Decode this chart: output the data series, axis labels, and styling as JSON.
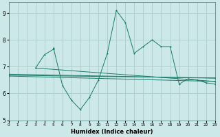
{
  "bg_color": "#cce8e8",
  "grid_color": "#b0d0d0",
  "line_color": "#1a7a6a",
  "xlabel": "Humidex (Indice chaleur)",
  "xlim": [
    0,
    23
  ],
  "ylim": [
    5,
    9.4
  ],
  "yticks": [
    5,
    6,
    7,
    8,
    9
  ],
  "xticks": [
    0,
    1,
    2,
    3,
    4,
    5,
    6,
    7,
    8,
    9,
    10,
    11,
    12,
    13,
    14,
    15,
    16,
    17,
    18,
    19,
    20,
    21,
    22,
    23
  ],
  "series1_x": [
    3,
    4,
    5,
    5,
    6,
    7,
    8,
    9,
    10,
    11,
    12,
    13,
    14,
    15,
    16,
    17,
    18,
    19,
    20,
    21,
    22,
    23
  ],
  "series1_y": [
    6.95,
    7.45,
    7.65,
    7.7,
    6.3,
    5.75,
    5.4,
    5.85,
    6.5,
    7.5,
    9.1,
    8.65,
    7.5,
    7.75,
    8.0,
    7.75,
    7.75,
    6.35,
    6.55,
    6.5,
    6.4,
    6.35
  ],
  "series2_x": [
    0,
    23
  ],
  "series2_y": [
    6.65,
    6.45
  ],
  "series3_x": [
    0,
    23
  ],
  "series3_y": [
    6.68,
    6.58
  ],
  "series4_x": [
    0,
    23
  ],
  "series4_y": [
    6.72,
    6.57
  ],
  "series5_x": [
    3,
    23
  ],
  "series5_y": [
    6.95,
    6.45
  ]
}
